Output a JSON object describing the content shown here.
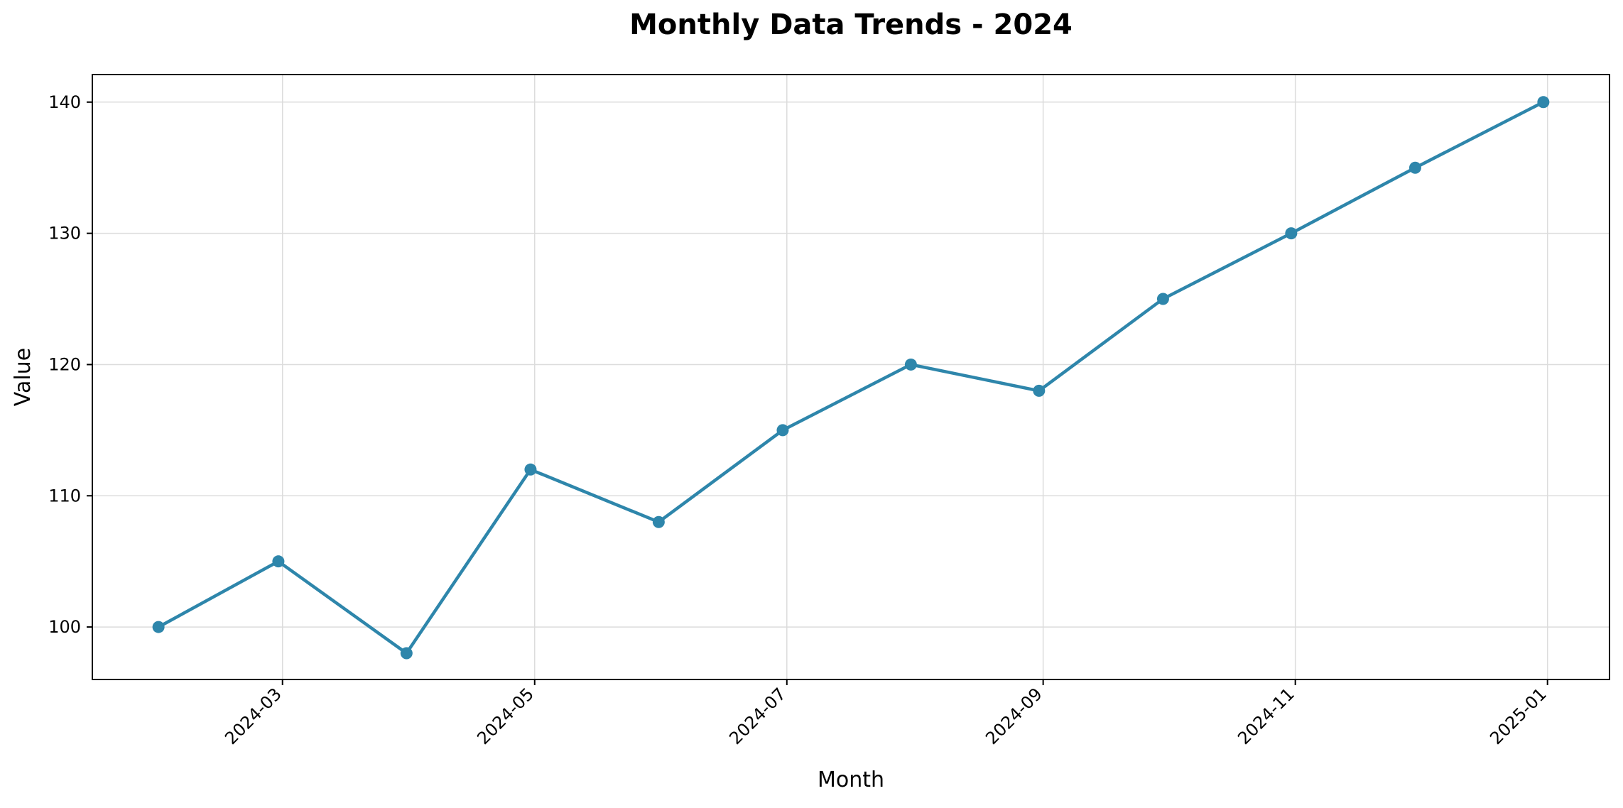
{
  "chart_data": {
    "type": "line",
    "title": "Monthly Data Trends - 2024",
    "xlabel": "Month",
    "ylabel": "Value",
    "x": [
      "2024-01-31",
      "2024-02-29",
      "2024-03-31",
      "2024-04-30",
      "2024-05-31",
      "2024-06-30",
      "2024-07-31",
      "2024-08-31",
      "2024-09-30",
      "2024-10-31",
      "2024-11-30",
      "2024-12-31"
    ],
    "series": [
      {
        "values": [
          100,
          105,
          98,
          112,
          108,
          115,
          120,
          118,
          125,
          130,
          135,
          140
        ],
        "color": "#2e86ab"
      }
    ],
    "xticks": [
      "2024-03",
      "2024-05",
      "2024-07",
      "2024-09",
      "2024-11",
      "2025-01"
    ],
    "xlim": [
      "2024-01-15",
      "2025-01-16"
    ],
    "yticks": [
      100,
      110,
      120,
      130,
      140
    ],
    "ylim": [
      96,
      142.1
    ],
    "grid": true,
    "legend": "none"
  }
}
